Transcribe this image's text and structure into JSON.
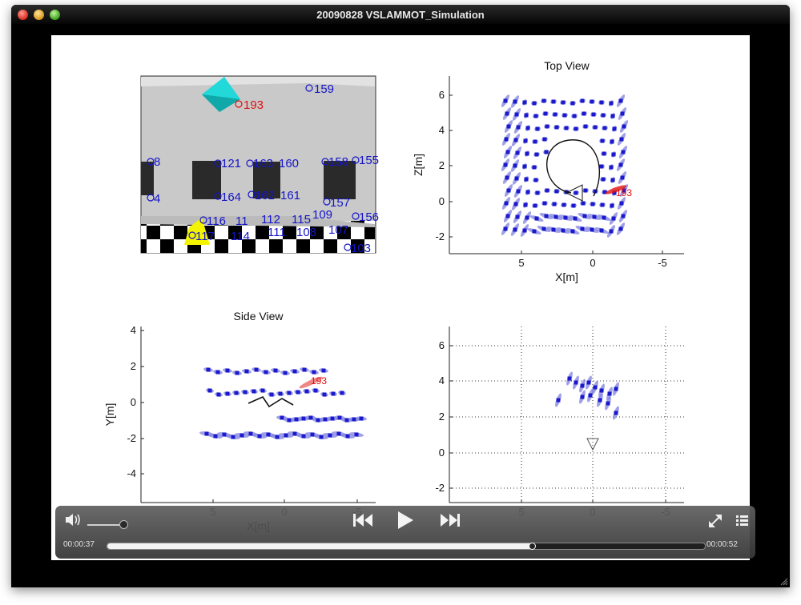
{
  "window": {
    "title": "20090828 VSLAMMOT_Simulation"
  },
  "plots": {
    "camera": {
      "labels": [
        "159",
        "193",
        "8",
        "121",
        "163",
        "160",
        "158",
        "155",
        "4",
        "164",
        "162",
        "161",
        "157",
        "156",
        "116",
        "11",
        "112",
        "115",
        "109",
        "117",
        "114",
        "111",
        "108",
        "107",
        "103"
      ]
    },
    "top_view": {
      "title": "Top View",
      "xlabel": "X[m]",
      "ylabel": "Z[m]",
      "xticks": [
        "5",
        "0",
        "-5"
      ],
      "yticks": [
        "6",
        "4",
        "2",
        "0",
        "-2"
      ],
      "landmark_label": "193"
    },
    "side_view": {
      "title": "Side View",
      "xlabel": "X[m]",
      "ylabel": "Y[m]",
      "xticks": [
        "5",
        "0",
        "-5"
      ],
      "yticks": [
        "4",
        "2",
        "0",
        "-2",
        "-4"
      ],
      "landmark_label": "193"
    },
    "local_view": {
      "xticks": [
        "5",
        "0",
        "-5"
      ],
      "yticks": [
        "6",
        "4",
        "2",
        "0",
        "-2"
      ]
    }
  },
  "player": {
    "current_time": "00:00:37",
    "total_time": "00:00:52",
    "progress": 0.71,
    "volume": 0.9
  },
  "colors": {
    "landmark": "#1a1acc",
    "uncertainty": "#8080e0",
    "highlight": "#e01010",
    "camera_box": "#00dddd"
  }
}
